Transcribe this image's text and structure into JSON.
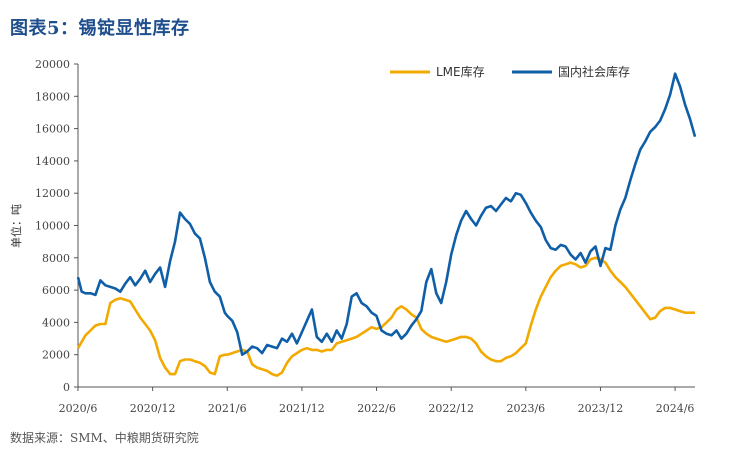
{
  "header": {
    "title": "图表5：锡锭显性库存"
  },
  "footer": {
    "source": "数据来源：SMM、中粮期货研究院"
  },
  "chart_data": {
    "type": "line",
    "title": "图表5：锡锭显性库存",
    "ylabel": "单位：吨",
    "xlabel": "",
    "ylim": [
      0,
      20000
    ],
    "yticks": [
      0,
      2000,
      4000,
      6000,
      8000,
      10000,
      12000,
      14000,
      16000,
      18000,
      20000
    ],
    "xlim": [
      "2020-06",
      "2024-08"
    ],
    "xticks": [
      "2020/6",
      "2020/12",
      "2021/6",
      "2021/12",
      "2022/6",
      "2022/12",
      "2023/6",
      "2023/12",
      "2024/6"
    ],
    "xtick_months": [
      0,
      6,
      12,
      18,
      24,
      30,
      36,
      42,
      48
    ],
    "legend_position": "top-right",
    "grid": false,
    "colors": {
      "LME库存": "#f2a900",
      "国内社会库存": "#0f5fa8"
    },
    "series": [
      {
        "name": "LME库存",
        "x": [
          0,
          0.3,
          0.6,
          1.0,
          1.4,
          1.8,
          2.2,
          2.6,
          3.0,
          3.4,
          3.8,
          4.2,
          4.6,
          5.0,
          5.4,
          5.8,
          6.2,
          6.6,
          7.0,
          7.4,
          7.8,
          8.2,
          8.6,
          9.0,
          9.4,
          9.8,
          10.2,
          10.6,
          11.0,
          11.4,
          11.8,
          12.0,
          12.4,
          12.8,
          13.2,
          13.6,
          14.0,
          14.4,
          14.8,
          15.2,
          15.6,
          16.0,
          16.4,
          16.8,
          17.2,
          17.6,
          18.0,
          18.4,
          18.8,
          19.2,
          19.6,
          20.0,
          20.4,
          20.8,
          21.2,
          21.6,
          22.0,
          22.4,
          22.8,
          23.2,
          23.6,
          24.0,
          24.4,
          24.8,
          25.2,
          25.6,
          26.0,
          26.4,
          26.8,
          27.2,
          27.6,
          28.0,
          28.4,
          28.8,
          29.2,
          29.6,
          30.0,
          30.4,
          30.8,
          31.2,
          31.6,
          32.0,
          32.4,
          32.8,
          33.2,
          33.6,
          34.0,
          34.4,
          34.8,
          35.2,
          35.6,
          36.0,
          36.4,
          36.8,
          37.2,
          37.6,
          38.0,
          38.4,
          38.8,
          39.2,
          39.6,
          40.0,
          40.4,
          40.8,
          41.2,
          41.6,
          42.0,
          42.4,
          42.8,
          43.2,
          43.6,
          44.0,
          44.4,
          44.8,
          45.2,
          45.6,
          46.0,
          46.4,
          46.8,
          47.2,
          47.6,
          48.0,
          48.4,
          48.8,
          49.2,
          49.6
        ],
        "values": [
          2400,
          2800,
          3200,
          3500,
          3800,
          3900,
          3900,
          5200,
          5400,
          5500,
          5400,
          5300,
          4800,
          4300,
          3900,
          3500,
          2900,
          1800,
          1200,
          800,
          800,
          1600,
          1700,
          1700,
          1600,
          1500,
          1300,
          900,
          800,
          1900,
          2000,
          2000,
          2100,
          2200,
          2300,
          2200,
          1400,
          1200,
          1100,
          1000,
          800,
          700,
          900,
          1500,
          1900,
          2100,
          2300,
          2400,
          2300,
          2300,
          2200,
          2300,
          2300,
          2700,
          2800,
          2900,
          3000,
          3100,
          3300,
          3500,
          3700,
          3600,
          3700,
          4000,
          4300,
          4800,
          5000,
          4800,
          4500,
          4300,
          3600,
          3300,
          3100,
          3000,
          2900,
          2800,
          2900,
          3000,
          3100,
          3100,
          3000,
          2700,
          2200,
          1900,
          1700,
          1600,
          1600,
          1800,
          1900,
          2100,
          2400,
          2700,
          3800,
          4800,
          5600,
          6200,
          6800,
          7200,
          7500,
          7600,
          7700,
          7600,
          7400,
          7500,
          7900,
          8000,
          7900,
          7700,
          7200,
          6800,
          6500,
          6200,
          5800,
          5400,
          5000,
          4600,
          4200,
          4300,
          4700,
          4900,
          4900,
          4800,
          4700,
          4600,
          4600,
          4600
        ]
      },
      {
        "name": "国内社会库存",
        "x": [
          0,
          0.3,
          0.6,
          1.0,
          1.4,
          1.8,
          2.2,
          2.6,
          3.0,
          3.4,
          3.8,
          4.2,
          4.6,
          5.0,
          5.4,
          5.8,
          6.2,
          6.6,
          7.0,
          7.4,
          7.8,
          8.2,
          8.6,
          9.0,
          9.4,
          9.8,
          10.2,
          10.6,
          11.0,
          11.4,
          11.8,
          12.0,
          12.4,
          12.8,
          13.2,
          13.6,
          14.0,
          14.4,
          14.8,
          15.2,
          15.6,
          16.0,
          16.4,
          16.8,
          17.2,
          17.6,
          18.0,
          18.4,
          18.8,
          19.2,
          19.6,
          20.0,
          20.4,
          20.8,
          21.2,
          21.6,
          22.0,
          22.4,
          22.8,
          23.2,
          23.6,
          24.0,
          24.4,
          24.8,
          25.2,
          25.6,
          26.0,
          26.4,
          26.8,
          27.2,
          27.6,
          28.0,
          28.4,
          28.8,
          29.2,
          29.6,
          30.0,
          30.4,
          30.8,
          31.2,
          31.6,
          32.0,
          32.4,
          32.8,
          33.2,
          33.6,
          34.0,
          34.4,
          34.8,
          35.2,
          35.6,
          36.0,
          36.4,
          36.8,
          37.2,
          37.6,
          38.0,
          38.4,
          38.8,
          39.2,
          39.6,
          40.0,
          40.4,
          40.8,
          41.2,
          41.6,
          42.0,
          42.4,
          42.8,
          43.2,
          43.6,
          44.0,
          44.4,
          44.8,
          45.2,
          45.6,
          46.0,
          46.4,
          46.8,
          47.2,
          47.6,
          48.0,
          48.4,
          48.8,
          49.2,
          49.6
        ],
        "values": [
          6800,
          5900,
          5800,
          5800,
          5700,
          6600,
          6300,
          6200,
          6100,
          5900,
          6400,
          6800,
          6300,
          6700,
          7200,
          6500,
          7000,
          7400,
          6200,
          7800,
          9000,
          10800,
          10400,
          10100,
          9500,
          9200,
          8000,
          6500,
          5900,
          5600,
          4600,
          4400,
          4100,
          3400,
          2000,
          2200,
          2500,
          2400,
          2100,
          2600,
          2500,
          2400,
          3000,
          2800,
          3300,
          2700,
          3400,
          4100,
          4800,
          3100,
          2800,
          3300,
          2800,
          3500,
          3000,
          3900,
          5600,
          5800,
          5200,
          5000,
          4600,
          4400,
          3500,
          3300,
          3200,
          3500,
          3000,
          3300,
          3800,
          4200,
          4700,
          6500,
          7300,
          5800,
          5200,
          6500,
          8200,
          9400,
          10300,
          10900,
          10400,
          10000,
          10600,
          11100,
          11200,
          10900,
          11300,
          11700,
          11500,
          12000,
          11900,
          11400,
          10800,
          10300,
          9900,
          9100,
          8600,
          8500,
          8800,
          8700,
          8200,
          7900,
          8300,
          7700,
          8400,
          8700,
          7500,
          8600,
          8500,
          10000,
          11000,
          11700,
          12800,
          13800,
          14700,
          15200,
          15800,
          16100,
          16500,
          17200,
          18100,
          19400,
          18600,
          17500,
          16600,
          15500
        ]
      }
    ]
  }
}
